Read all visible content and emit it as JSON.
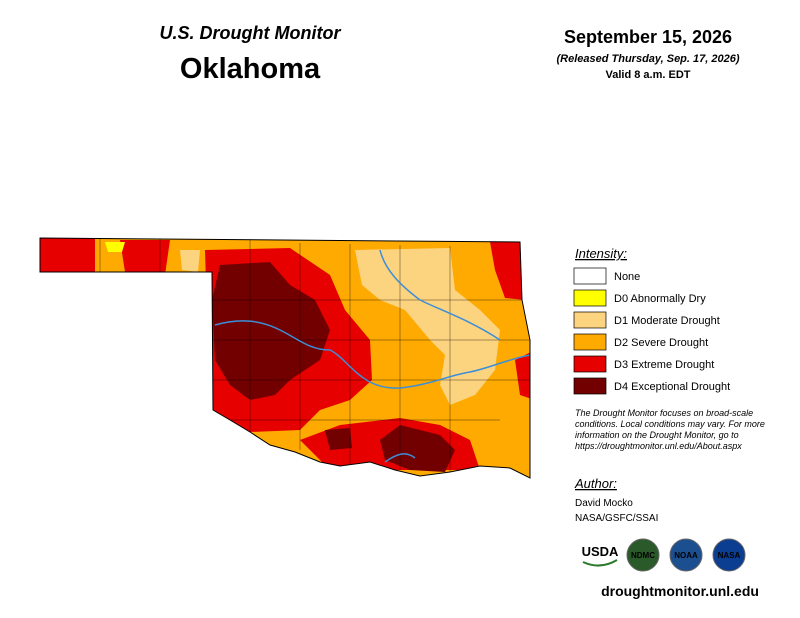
{
  "header": {
    "title": "U.S. Drought Monitor",
    "state": "Oklahoma",
    "date": "September 15, 2026",
    "released": "(Released Thursday, Sep. 17, 2026)",
    "valid": "Valid 8 a.m. EDT"
  },
  "legend": {
    "title": "Intensity:",
    "items": [
      {
        "label": "None",
        "color": "#ffffff"
      },
      {
        "label": "D0 Abnormally Dry",
        "color": "#ffff00"
      },
      {
        "label": "D1 Moderate Drought",
        "color": "#fcd37f"
      },
      {
        "label": "D2 Severe Drought",
        "color": "#ffaa00"
      },
      {
        "label": "D3 Extreme Drought",
        "color": "#e60000"
      },
      {
        "label": "D4 Exceptional Drought",
        "color": "#730000"
      }
    ],
    "note": [
      "The Drought Monitor focuses on broad-scale",
      "conditions. Local conditions may vary. For more",
      "information on the Drought Monitor, go to",
      "https://droughtmonitor.unl.edu/About.aspx"
    ]
  },
  "author": {
    "label": "Author:",
    "name": "David Mocko",
    "affiliation": "NASA/GSFC/SSAI"
  },
  "logos": [
    "USDA",
    "NDMC",
    "NOAA",
    "NASA"
  ],
  "url": "droughtmonitor.unl.edu"
}
